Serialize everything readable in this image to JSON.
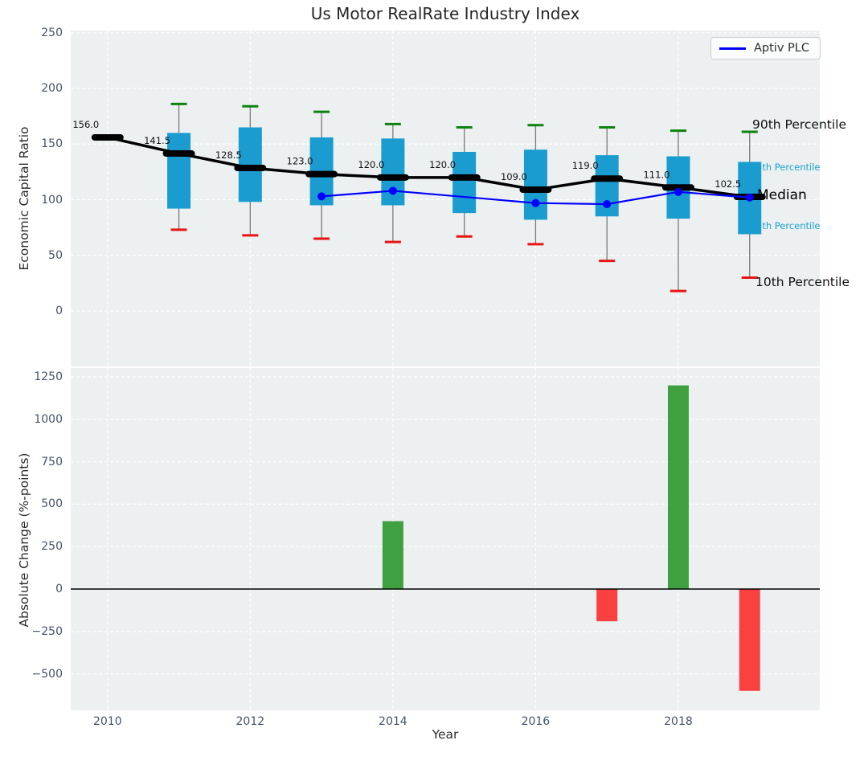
{
  "title": "Us Motor RealRate Industry Index",
  "legend": {
    "label": "Aptiv PLC",
    "line_color": "#0000ff",
    "position": "upper right"
  },
  "annotations": {
    "p90_label": "90th Percentile",
    "p75_label": "5th Percentile",
    "median_label": "Median",
    "p25_label": "5th Percentile",
    "p10_label": "10th Percentile"
  },
  "chart_data": [
    {
      "type": "boxplot_with_line",
      "title": "Us Motor RealRate Industry Index",
      "ylabel": "Economic Capital Ratio",
      "xlabel": "",
      "grid": true,
      "ylim": [
        -50,
        252
      ],
      "yticks": [
        0,
        50,
        100,
        150,
        200,
        250
      ],
      "xticks": [
        2010,
        2012,
        2014,
        2016,
        2018
      ],
      "years": [
        2010,
        2011,
        2012,
        2013,
        2014,
        2015,
        2016,
        2017,
        2018,
        2019
      ],
      "median": [
        156.0,
        141.5,
        128.5,
        123.0,
        120.0,
        120.0,
        109.0,
        119.0,
        111.0,
        102.5
      ],
      "median_labels": [
        "156.0",
        "141.5",
        "128.5",
        "123.0",
        "120.0",
        "120.0",
        "109.0",
        "119.0",
        "111.0",
        "102.5"
      ],
      "q1": [
        null,
        92,
        98,
        95,
        95,
        88,
        82,
        85,
        83,
        69
      ],
      "q3": [
        null,
        160,
        165,
        156,
        155,
        143,
        145,
        140,
        139,
        134
      ],
      "p10": [
        null,
        73,
        68,
        65,
        62,
        67,
        60,
        45,
        18,
        30
      ],
      "p90": [
        null,
        186,
        184,
        179,
        168,
        165,
        167,
        165,
        162,
        161
      ],
      "series": [
        {
          "name": "Aptiv PLC",
          "x": [
            2013,
            2014,
            2016,
            2017,
            2018,
            2019
          ],
          "y": [
            103,
            108,
            97,
            96,
            107,
            102
          ]
        }
      ],
      "colors": {
        "box": "#1b9cd0",
        "whisker": "#7a7a7a",
        "p90_cap": "#0c830c",
        "p10_cap": "#ea1313",
        "median": "#000000",
        "line": "#0000ff",
        "background": "#ecf0f1",
        "grid": "#ffffff"
      }
    },
    {
      "type": "bar",
      "ylabel": "Absolute Change (%-points)",
      "xlabel": "Year",
      "grid": true,
      "ylim": [
        -715,
        1290
      ],
      "yticks": [
        -500,
        -250,
        0,
        250,
        500,
        750,
        1000,
        1250
      ],
      "xticks": [
        2010,
        2012,
        2014,
        2016,
        2018
      ],
      "bars": [
        {
          "x": 2014,
          "value": 400
        },
        {
          "x": 2017,
          "value": -190
        },
        {
          "x": 2018,
          "value": 1200
        },
        {
          "x": 2019,
          "value": -600
        }
      ],
      "colors": {
        "positive": "#3fa040",
        "negative": "#f9413f",
        "zero_line": "#000000"
      }
    }
  ]
}
